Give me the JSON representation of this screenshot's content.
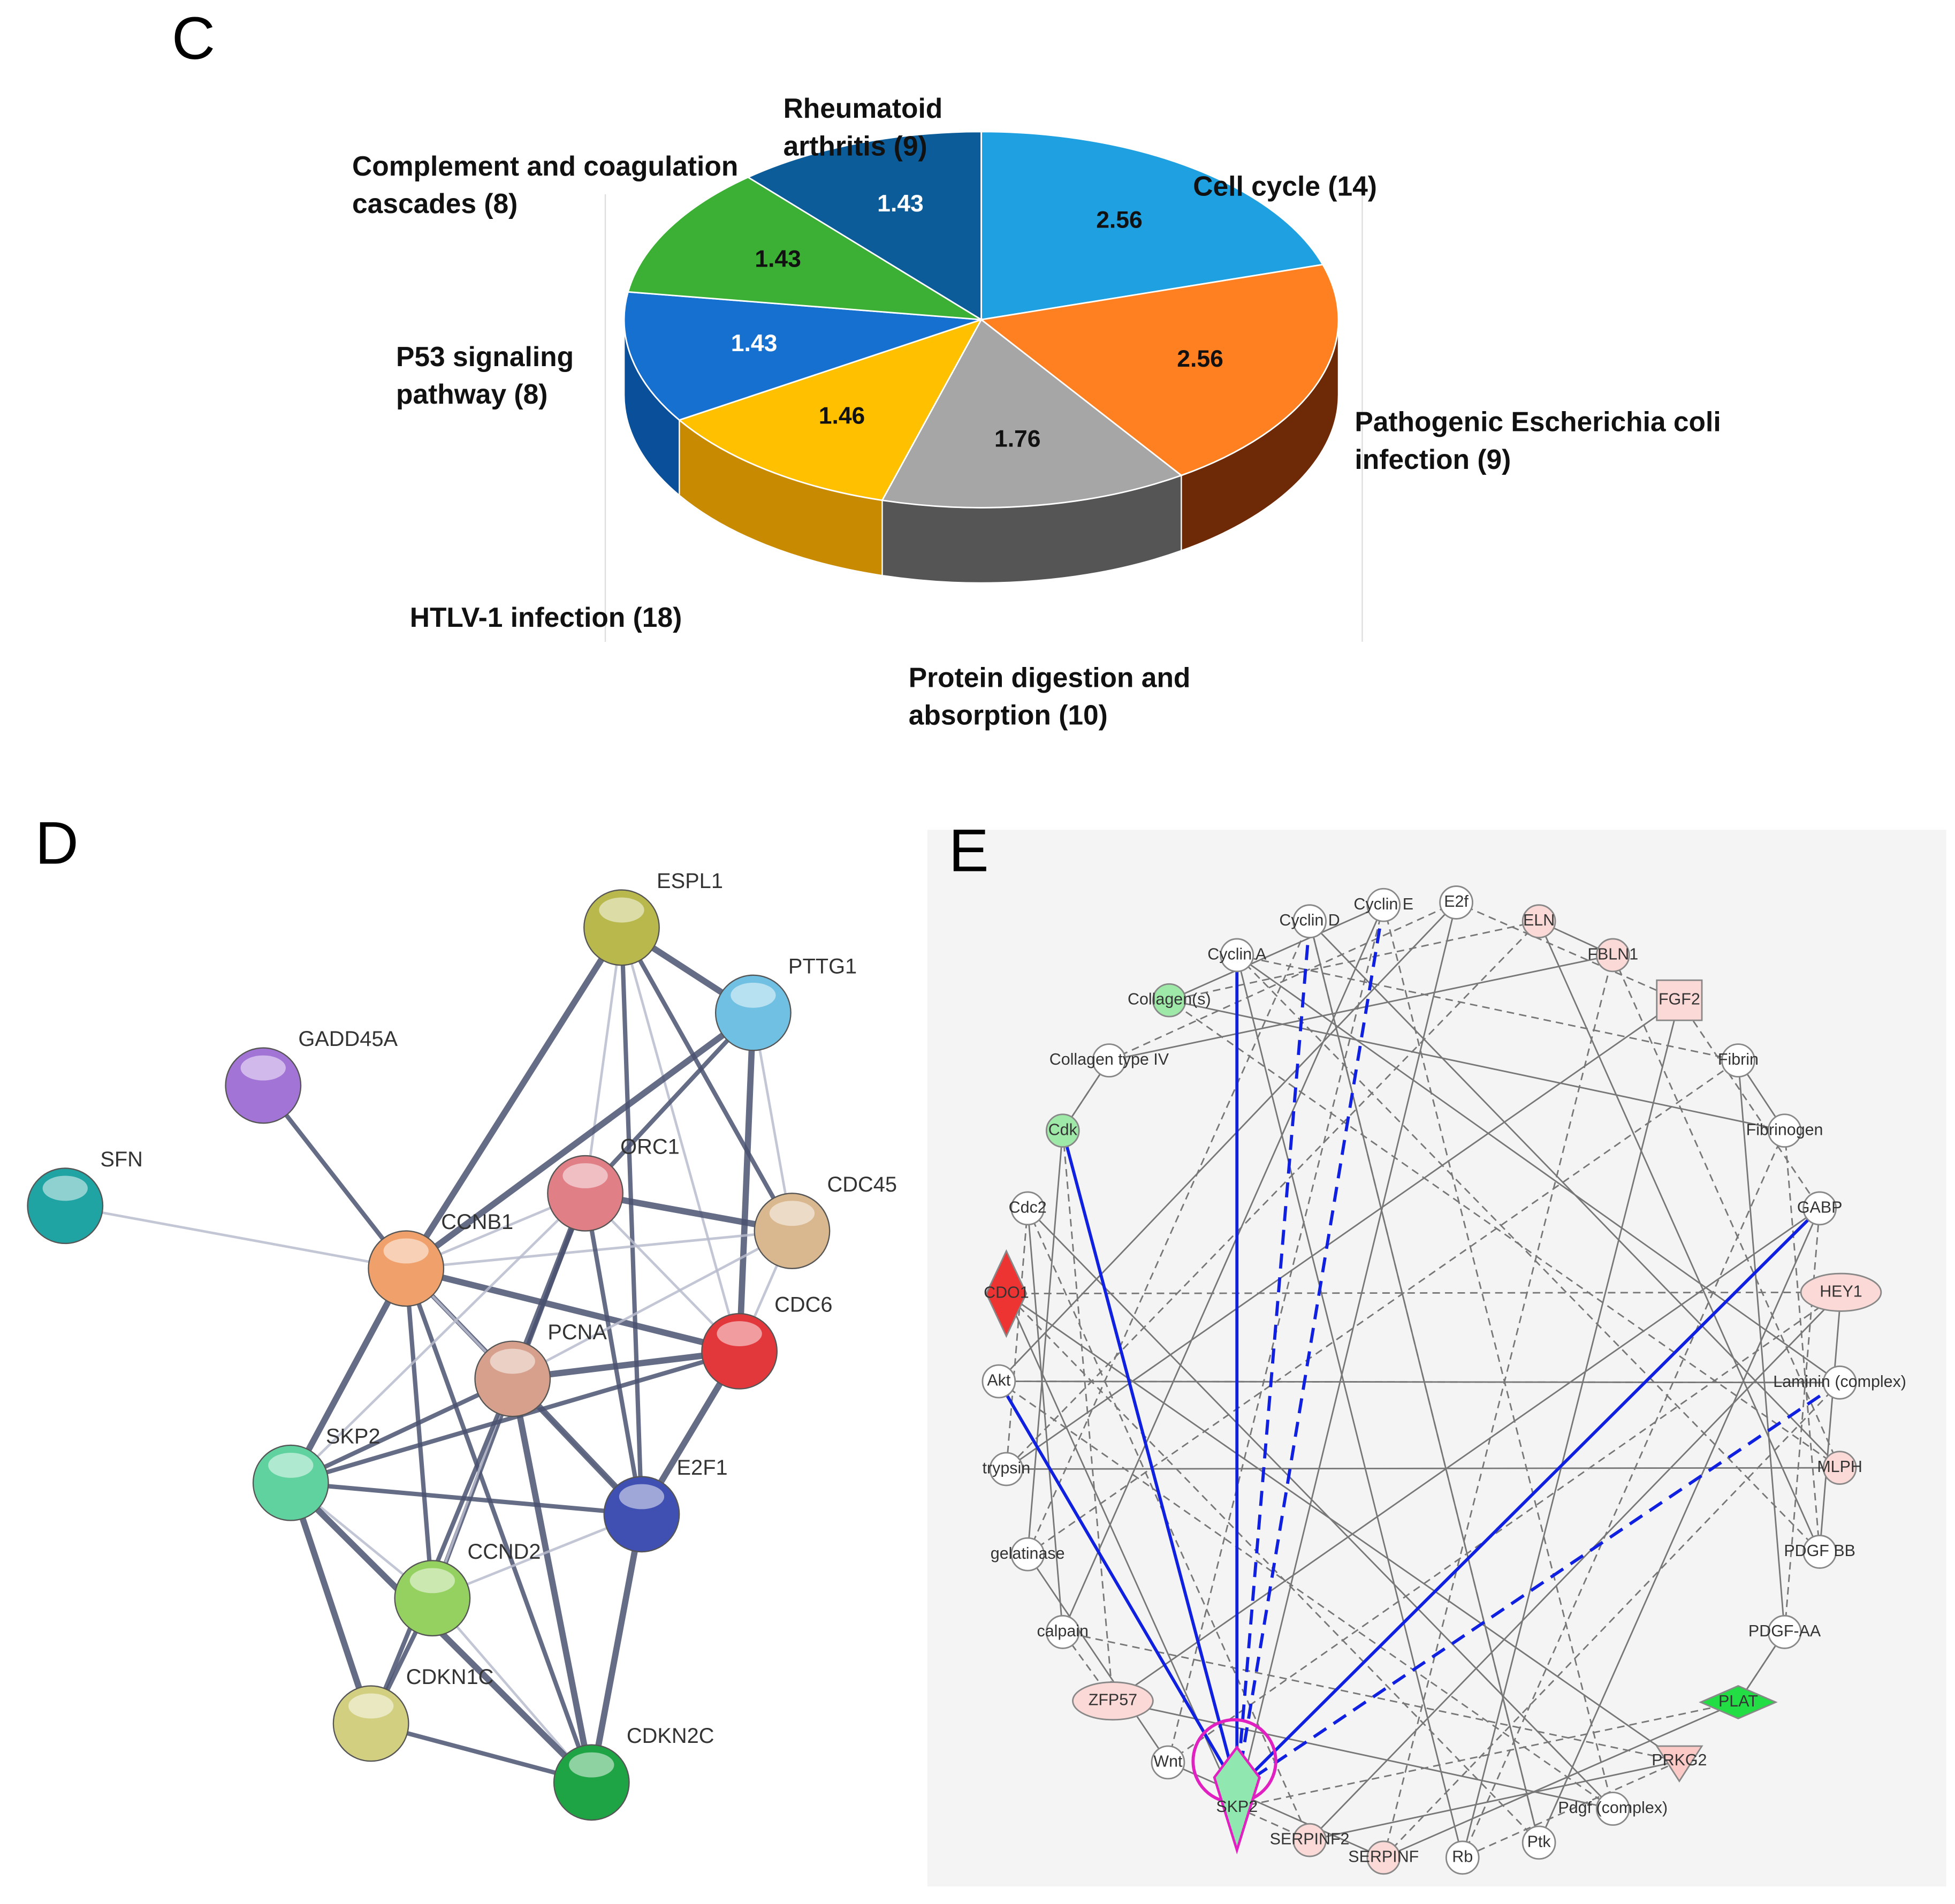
{
  "panels": [
    "C",
    "D",
    "E"
  ],
  "chart_data": {
    "type": "pie",
    "categories": [
      "Cell cycle (14)",
      "Pathogenic Escherichia coli infection (9)",
      "Protein digestion and absorption (10)",
      "HTLV-1 infection (18)",
      "P53 signaling pathway (8)",
      "Complement and coagulation cascades (8)",
      "Rheumatoid arthritis (9)"
    ],
    "values": [
      2.56,
      2.56,
      1.76,
      1.46,
      1.43,
      1.43,
      1.43
    ],
    "colors": [
      "#1fa0e0",
      "#ff8021",
      "#a6a6a6",
      "#ffc000",
      "#1570d0",
      "#3cb034",
      "#0b5c99"
    ]
  },
  "network_d": {
    "nodes": [
      "ESPL1",
      "PTTG1",
      "GADD45A",
      "SFN",
      "ORC1",
      "CDC45",
      "CCNB1",
      "CDC6",
      "PCNA",
      "SKP2",
      "E2F1",
      "CCND2",
      "CDKN1C",
      "CDKN2C"
    ]
  },
  "network_e": {
    "nodes": [
      "Cyclin A",
      "Cyclin D",
      "Cyclin E",
      "E2f",
      "ELN",
      "FBLN1",
      "FGF2",
      "Fibrin",
      "Fibrinogen",
      "GABP",
      "HEY1",
      "Laminin (complex)",
      "MLPH",
      "PDGF BB",
      "PDGF-AA",
      "PLAT",
      "PRKG2",
      "Pdgf (complex)",
      "Ptk",
      "Rb",
      "SERPINF",
      "SERPINF2",
      "SKP2",
      "Wnt",
      "ZFP57",
      "calpain",
      "gelatinase",
      "trypsin",
      "Akt",
      "CDO1",
      "Cdc2",
      "Cdk",
      "Collagen type IV",
      "Collagen(s)"
    ]
  }
}
